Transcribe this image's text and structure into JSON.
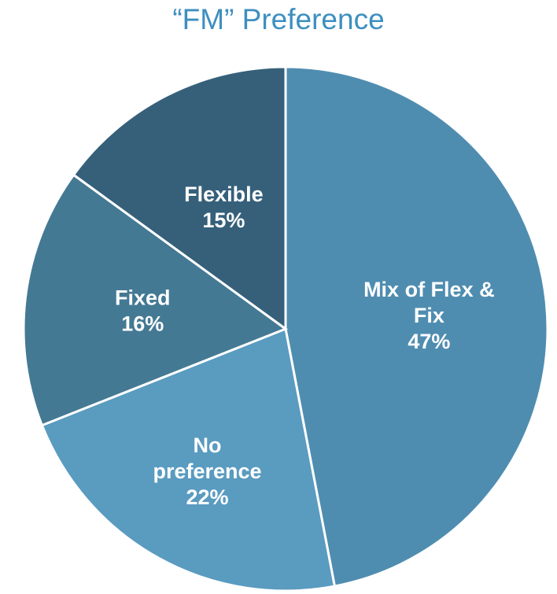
{
  "chart_data": {
    "type": "pie",
    "title": "“FM” Preference",
    "categories": [
      "Mix of Flex & Fix",
      "No preference",
      "Fixed",
      "Flexible"
    ],
    "values": [
      47,
      22,
      16,
      15
    ],
    "value_labels": [
      "47%",
      "22%",
      "16%",
      "15%"
    ],
    "label_lines": [
      [
        "Mix of Flex &",
        "Fix",
        "47%"
      ],
      [
        "No",
        "preference",
        "22%"
      ],
      [
        "Fixed",
        "16%"
      ],
      [
        "Flexible",
        "15%"
      ]
    ],
    "colors": [
      "#4f8db0",
      "#5a9bc0",
      "#447994",
      "#36607a"
    ],
    "legend": "none",
    "start": "12 o'clock",
    "direction": "clockwise"
  },
  "style": {
    "title_color": "#3d8fbf"
  }
}
